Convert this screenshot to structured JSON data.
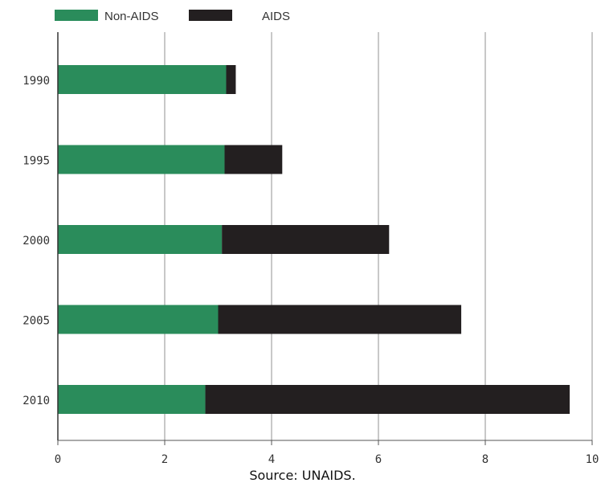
{
  "chart_data": {
    "type": "bar",
    "orientation": "horizontal",
    "stacked": true,
    "categories": [
      "1990",
      "1995",
      "2000",
      "2005",
      "2010"
    ],
    "series": [
      {
        "name": "Non-AIDS",
        "color": "#2a8c5b",
        "values": [
          3.15,
          3.12,
          3.07,
          3.0,
          2.76
        ]
      },
      {
        "name": "AIDS",
        "color": "#231f20",
        "values": [
          0.18,
          1.08,
          3.13,
          4.55,
          6.82
        ]
      }
    ],
    "xlim": [
      0,
      10
    ],
    "xticks": [
      "0",
      "2",
      "4",
      "6",
      "8",
      "10"
    ],
    "grid": "vertical",
    "legend_position": "top-left",
    "source": "Source: UNAIDS."
  }
}
